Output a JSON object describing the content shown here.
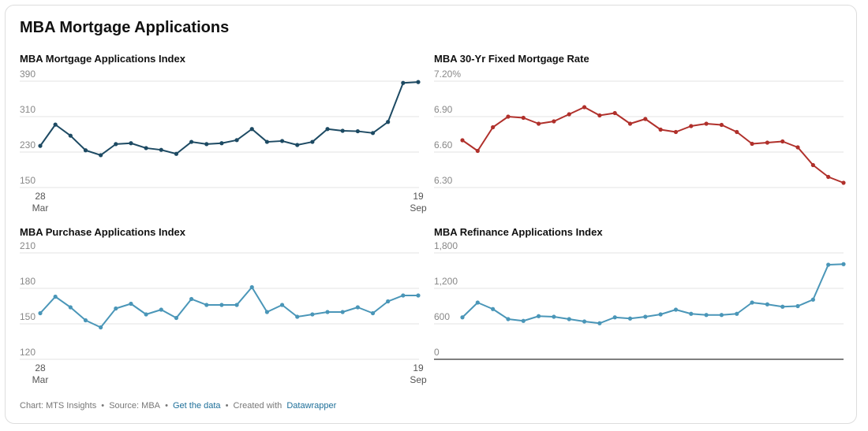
{
  "title": "MBA Mortgage Applications",
  "footer": {
    "chart": "Chart: MTS Insights",
    "source": "Source: MBA",
    "get_data": "Get the data",
    "created": "Created with",
    "tool": "Datawrapper",
    "separator": "•"
  },
  "chart_data": [
    {
      "type": "line",
      "title": "MBA Mortgage Applications Index",
      "color": "#1d4a63",
      "categories": [
        "28 Mar",
        null,
        null,
        null,
        null,
        null,
        null,
        null,
        null,
        null,
        null,
        null,
        null,
        null,
        null,
        null,
        null,
        null,
        null,
        null,
        null,
        null,
        null,
        null,
        null,
        "19 Sep"
      ],
      "values": [
        244,
        292,
        267,
        234,
        223,
        248,
        250,
        239,
        235,
        226,
        253,
        248,
        250,
        257,
        282,
        253,
        255,
        246,
        253,
        282,
        278,
        277,
        273,
        298,
        386,
        388
      ],
      "ylim": [
        150,
        390
      ],
      "yticks": [
        390,
        310,
        230,
        150
      ],
      "grid": true
    },
    {
      "type": "line",
      "title": "MBA 30-Yr Fixed Mortgage Rate",
      "color": "#b0302b",
      "values": [
        6.7,
        6.61,
        6.81,
        6.9,
        6.89,
        6.84,
        6.86,
        6.92,
        6.98,
        6.91,
        6.93,
        6.84,
        6.88,
        6.79,
        6.77,
        6.82,
        6.84,
        6.83,
        6.77,
        6.67,
        6.68,
        6.69,
        6.64,
        6.49,
        6.39,
        6.34
      ],
      "ylim": [
        6.3,
        7.2
      ],
      "yticks": [
        {
          "value": 7.2,
          "label": "7.20%"
        },
        {
          "value": 6.9,
          "label": "6.90"
        },
        {
          "value": 6.6,
          "label": "6.60"
        },
        {
          "value": 6.3,
          "label": "6.30"
        }
      ],
      "grid": true
    },
    {
      "type": "line",
      "title": "MBA Purchase Applications Index",
      "color": "#4a96b8",
      "categories": [
        "28 Mar",
        null,
        null,
        null,
        null,
        null,
        null,
        null,
        null,
        null,
        null,
        null,
        null,
        null,
        null,
        null,
        null,
        null,
        null,
        null,
        null,
        null,
        null,
        null,
        null,
        "19 Sep"
      ],
      "values": [
        159,
        173,
        164,
        153,
        147,
        163,
        167,
        158,
        162,
        155,
        171,
        166,
        166,
        166,
        181,
        160,
        166,
        156,
        158,
        160,
        160,
        164,
        159,
        169,
        174,
        174
      ],
      "ylim": [
        120,
        210
      ],
      "yticks": [
        210,
        180,
        150,
        120
      ],
      "grid": true
    },
    {
      "type": "line",
      "title": "MBA Refinance Applications Index",
      "color": "#4a96b8",
      "values": [
        710,
        960,
        850,
        680,
        650,
        730,
        720,
        680,
        640,
        610,
        710,
        690,
        720,
        760,
        840,
        770,
        750,
        750,
        770,
        960,
        930,
        890,
        900,
        1010,
        1600,
        1610
      ],
      "ylim": [
        0,
        1800
      ],
      "yticks": [
        {
          "value": 1800,
          "label": "1,800"
        },
        {
          "value": 1200,
          "label": "1,200"
        },
        600,
        0
      ],
      "grid": true,
      "zero_line": true
    }
  ]
}
